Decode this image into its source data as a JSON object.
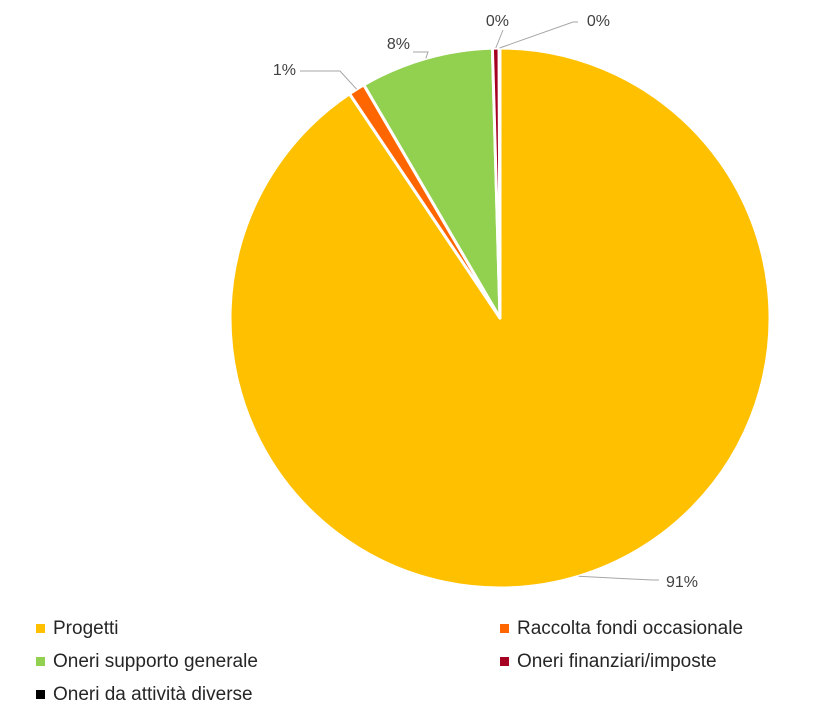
{
  "chart_data": {
    "type": "pie",
    "title": "",
    "legend_position": "bottom",
    "slices": [
      {
        "name": "Progetti",
        "value": 91,
        "label": "91%",
        "color": "#FFC000"
      },
      {
        "name": "Raccolta fondi occasionale",
        "value": 1,
        "label": "1%",
        "color": "#FF6600"
      },
      {
        "name": "Oneri supporto generale",
        "value": 8,
        "label": "8%",
        "color": "#92D050"
      },
      {
        "name": "Oneri finanziari/imposte",
        "value": 0.4,
        "label": "0%",
        "color": "#A50021"
      },
      {
        "name": "Oneri da attività diverse",
        "value": 0.05,
        "label": "0%",
        "color": "#000000"
      }
    ]
  }
}
